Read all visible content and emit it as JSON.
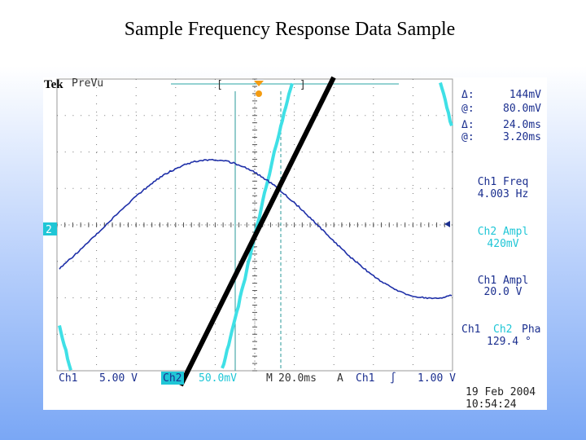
{
  "title": "Sample Frequency Response Data Sample",
  "scope": {
    "brand": "Tek",
    "mode": "PreVu",
    "channel_marker": "2",
    "cursor_readouts": [
      {
        "label": "Δ:",
        "value": "144mV"
      },
      {
        "label": "@:",
        "value": "80.0mV"
      },
      {
        "label": "Δ:",
        "value": "24.0ms"
      },
      {
        "label": "@:",
        "value": "3.20ms"
      }
    ],
    "measurements": [
      {
        "name": "Ch1 Freq",
        "value": "4.003 Hz"
      },
      {
        "name": "Ch2 Ampl",
        "value": "420mV"
      },
      {
        "name": "Ch1 Ampl",
        "value": "20.0 V"
      }
    ],
    "phase": {
      "parts": [
        "Ch1",
        "Ch2",
        "Pha"
      ],
      "value": "129.4 °"
    },
    "status": {
      "ch1_label": "Ch1",
      "ch1_scale": "5.00 V",
      "ch2_label": "Ch2",
      "ch2_scale": "50.0mV",
      "time_label": "M",
      "time_scale": "20.0ms",
      "trigger_label": "A",
      "trigger_source": "Ch1",
      "trigger_slope": "∫",
      "trigger_level": "1.00 V"
    },
    "date": "19 Feb 2004",
    "time": "10:54:24"
  }
}
